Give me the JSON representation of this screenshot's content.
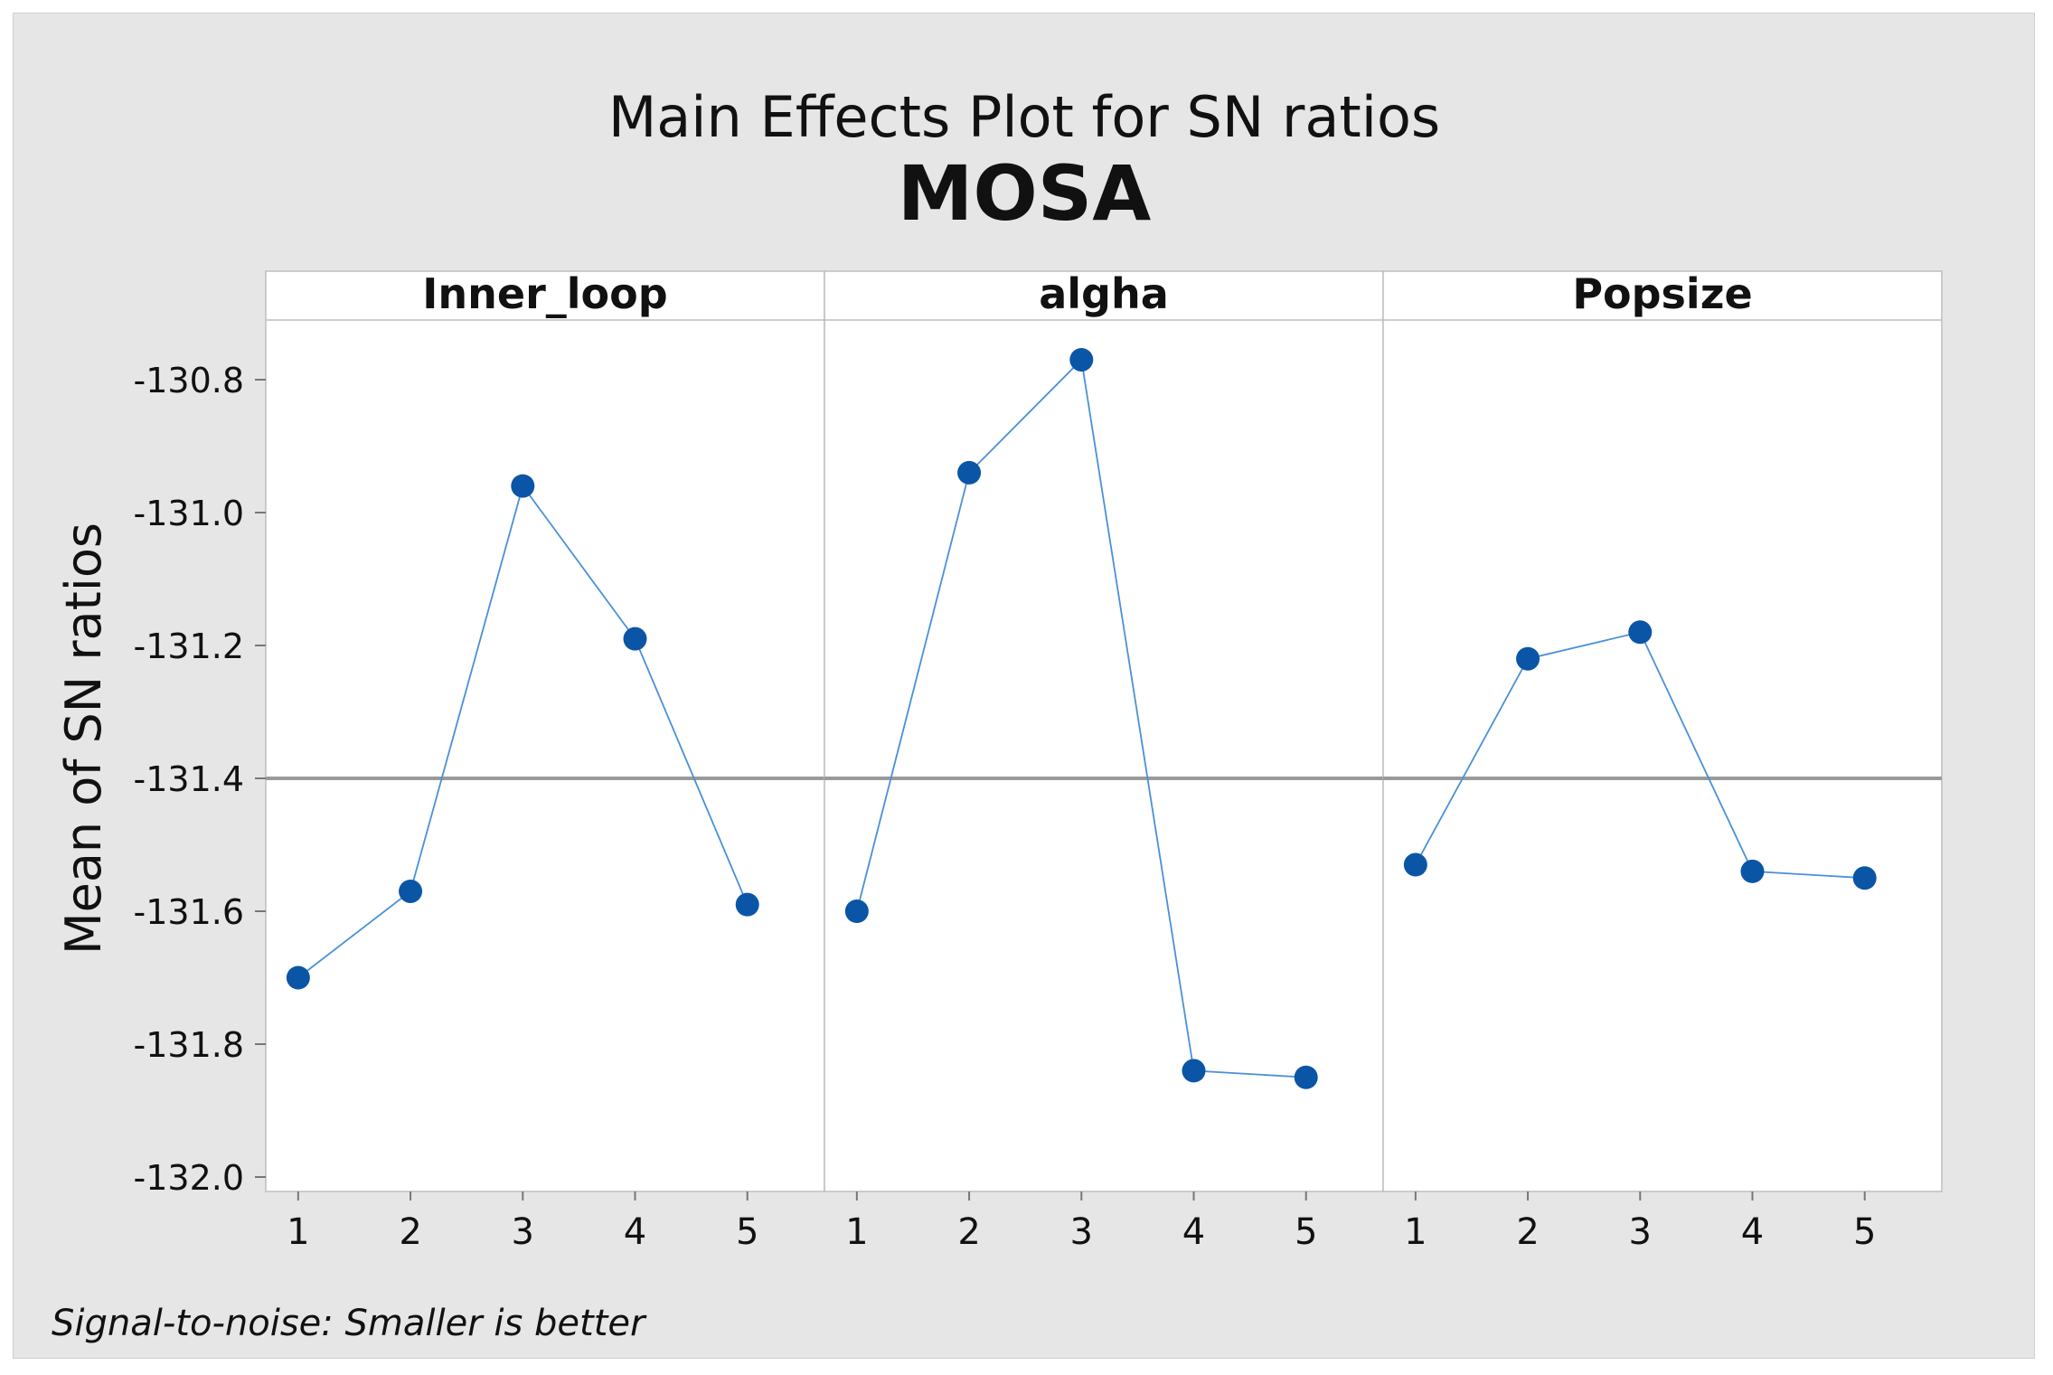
{
  "chart_data": {
    "type": "line",
    "title": "Main Effects Plot for SN ratios",
    "subtitle": "MOSA",
    "ylabel": "Mean of SN ratios",
    "ylim": [
      -132.0,
      -130.7
    ],
    "yticks": [
      "-130.8",
      "-131.0",
      "-131.2",
      "-131.4",
      "-131.6",
      "-131.8",
      "-132.0"
    ],
    "categories": [
      "1",
      "2",
      "3",
      "4",
      "5"
    ],
    "reference_line": -131.4,
    "footnote": "Signal-to-noise: Smaller is better",
    "panels": [
      {
        "name": "Inner_loop",
        "values": [
          -131.7,
          -131.57,
          -130.96,
          -131.19,
          -131.59
        ]
      },
      {
        "name": "algha",
        "values": [
          -131.6,
          -130.94,
          -130.77,
          -131.84,
          -131.85
        ]
      },
      {
        "name": "Popsize",
        "values": [
          -131.53,
          -131.22,
          -131.18,
          -131.54,
          -131.55
        ]
      }
    ],
    "colors": {
      "marker": "#0b55a6",
      "line": "#4a90d9",
      "reference": "#9a9a9a",
      "panel_border": "#bdbdbd",
      "background": "#e6e6e6",
      "plot_background": "#ffffff"
    }
  }
}
